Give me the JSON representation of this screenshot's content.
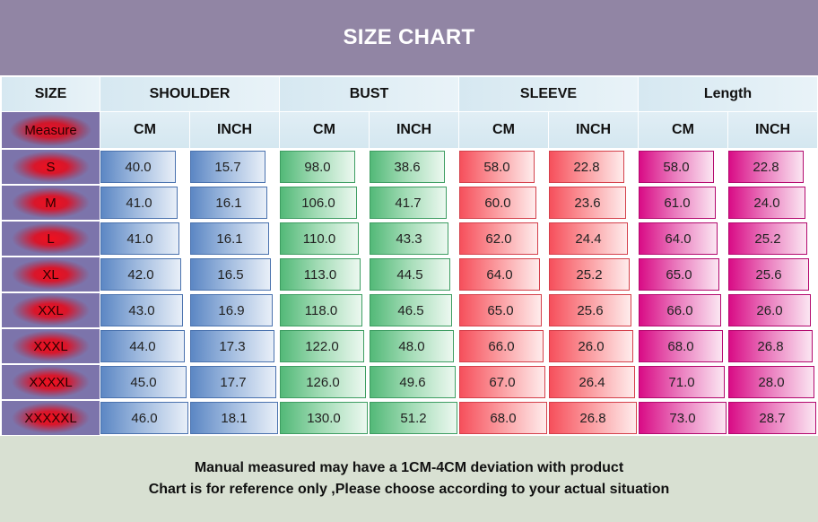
{
  "title": "SIZE CHART",
  "headers": {
    "size": "SIZE",
    "groups": [
      "SHOULDER",
      "BUST",
      "SLEEVE",
      "Length"
    ],
    "measure": "Measure",
    "units": [
      "CM",
      "INCH",
      "CM",
      "INCH",
      "CM",
      "INCH",
      "CM",
      "INCH"
    ]
  },
  "rows": [
    {
      "size": "S",
      "values": [
        "40.0",
        "15.7",
        "98.0",
        "38.6",
        "58.0",
        "22.8",
        "58.0",
        "22.8"
      ]
    },
    {
      "size": "M",
      "values": [
        "41.0",
        "16.1",
        "106.0",
        "41.7",
        "60.0",
        "23.6",
        "61.0",
        "24.0"
      ]
    },
    {
      "size": "L",
      "values": [
        "41.0",
        "16.1",
        "110.0",
        "43.3",
        "62.0",
        "24.4",
        "64.0",
        "25.2"
      ]
    },
    {
      "size": "XL",
      "values": [
        "42.0",
        "16.5",
        "113.0",
        "44.5",
        "64.0",
        "25.2",
        "65.0",
        "25.6"
      ]
    },
    {
      "size": "XXL",
      "values": [
        "43.0",
        "16.9",
        "118.0",
        "46.5",
        "65.0",
        "25.6",
        "66.0",
        "26.0"
      ]
    },
    {
      "size": "XXXL",
      "values": [
        "44.0",
        "17.3",
        "122.0",
        "48.0",
        "66.0",
        "26.0",
        "68.0",
        "26.8"
      ]
    },
    {
      "size": "XXXXL",
      "values": [
        "45.0",
        "17.7",
        "126.0",
        "49.6",
        "67.0",
        "26.4",
        "71.0",
        "28.0"
      ]
    },
    {
      "size": "XXXXXL",
      "values": [
        "46.0",
        "18.1",
        "130.0",
        "51.2",
        "68.0",
        "26.8",
        "73.0",
        "28.7"
      ]
    }
  ],
  "footer": {
    "line1": "Manual measured may have a 1CM-4CM deviation with product",
    "line2": "Chart is for reference only ,Please choose according to your actual situation"
  },
  "colors": {
    "title_bar": "#9185a4",
    "shoulder": "#5c87c4",
    "bust": "#53b978",
    "sleeve": "#f6505c",
    "length": "#d90c86",
    "footer_bg": "#d8e0d2"
  }
}
